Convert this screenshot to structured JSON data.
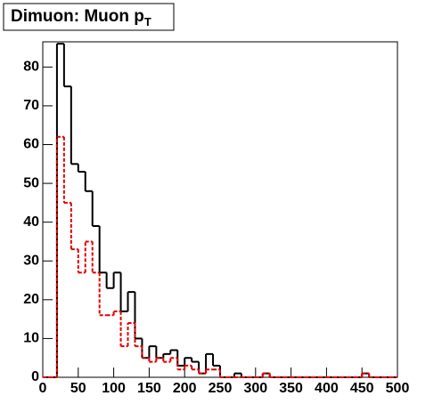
{
  "chart_data": {
    "type": "histogram",
    "title": "Dimuon: Muon p",
    "title_subscript": "T",
    "bins": [
      0,
      10,
      20,
      30,
      40,
      50,
      60,
      70,
      80,
      90,
      100,
      110,
      120,
      130,
      140,
      150,
      160,
      170,
      180,
      190,
      200,
      210,
      220,
      230,
      240,
      250,
      260,
      270,
      280,
      290,
      300,
      310,
      320,
      330,
      340,
      350,
      360,
      370,
      380,
      390,
      400,
      410,
      420,
      430,
      440,
      450,
      460,
      470,
      480,
      490,
      500
    ],
    "series": [
      {
        "color": "#000000",
        "style": "solid",
        "values": [
          0,
          0,
          86,
          75,
          55,
          53,
          48,
          39,
          27,
          23,
          27,
          17,
          22,
          10,
          5,
          8,
          5,
          6,
          7,
          3,
          5,
          4,
          1,
          6,
          3,
          0,
          0,
          1,
          0,
          0,
          0,
          1,
          0,
          0,
          0,
          0,
          0,
          0,
          0,
          0,
          0,
          0,
          0,
          0,
          0,
          1,
          0,
          0,
          0,
          0
        ]
      },
      {
        "color": "#e00000",
        "style": "dashed",
        "values": [
          0,
          0,
          62,
          45,
          33,
          27,
          35,
          27,
          16,
          16,
          17,
          8,
          14,
          8,
          5,
          4,
          5,
          4,
          5,
          2,
          3,
          2,
          1,
          2,
          2,
          0,
          0,
          0,
          0,
          0,
          0,
          1,
          0,
          0,
          0,
          0,
          0,
          0,
          0,
          0,
          0,
          0,
          0,
          0,
          0,
          1,
          0,
          0,
          0,
          0
        ]
      }
    ],
    "xlim": [
      0,
      500
    ],
    "xticks": [
      0,
      50,
      100,
      150,
      200,
      250,
      300,
      350,
      400,
      450,
      500
    ],
    "ylim": [
      0,
      86.5
    ],
    "yticks": [
      0,
      10,
      20,
      30,
      40,
      50,
      60,
      70,
      80
    ]
  }
}
